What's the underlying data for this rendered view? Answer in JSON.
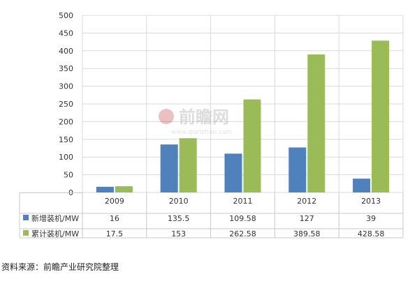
{
  "chart_data": {
    "type": "bar",
    "categories": [
      "2009",
      "2010",
      "2011",
      "2012",
      "2013"
    ],
    "series": [
      {
        "name": "新增装机/MW",
        "values": [
          16,
          135.5,
          109.58,
          127,
          39
        ],
        "labels": [
          "16",
          "135.5",
          "109.58",
          "127",
          "39"
        ],
        "color": "#4f81bd"
      },
      {
        "name": "累计装机/MW",
        "values": [
          17.5,
          153,
          262.58,
          389.58,
          428.58
        ],
        "labels": [
          "17.5",
          "153",
          "262.58",
          "389.58",
          "428.58"
        ],
        "color": "#9bbb59"
      }
    ],
    "ylim": [
      0,
      500
    ],
    "yticks": [
      "0",
      "50",
      "100",
      "150",
      "200",
      "250",
      "300",
      "350",
      "400",
      "450",
      "500"
    ],
    "grid": true,
    "legend": "data-table-left"
  },
  "watermark": {
    "text": "前瞻网",
    "url": "www.qianzhan.com"
  },
  "source_note": "资料来源：前瞻产业研究院整理"
}
